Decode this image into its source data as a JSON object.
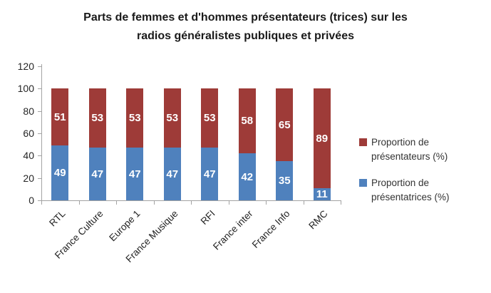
{
  "title_lines": [
    "Parts de femmes et d'hommes présentateurs (trices) sur les",
    "radios généralistes publiques et privées"
  ],
  "chart_data": {
    "type": "bar",
    "stacked": true,
    "title": "Parts de femmes et d'hommes présentateurs (trices) sur les radios généralistes publiques et privées",
    "categories": [
      "RTL",
      "France Culture",
      "Europe 1",
      "France Musique",
      "RFI",
      "France inter",
      "France Info",
      "RMC"
    ],
    "series": [
      {
        "name": "Proportion de présentatrices (%)",
        "color": "#4F81BD",
        "values": [
          49,
          47,
          47,
          47,
          47,
          42,
          35,
          11
        ]
      },
      {
        "name": "Proportion de présentateurs (%)",
        "color": "#9E3B38",
        "values": [
          51,
          53,
          53,
          53,
          53,
          58,
          65,
          89
        ]
      }
    ],
    "xlabel": "",
    "ylabel": "",
    "ylim": [
      0,
      120
    ],
    "yticks": [
      0,
      20,
      40,
      60,
      80,
      100,
      120
    ],
    "grid": false,
    "data_labels": true,
    "legend_position": "right"
  },
  "legend": {
    "items": [
      {
        "label": "Proportion de présentateurs (%)",
        "color": "#9E3B38"
      },
      {
        "label": "Proportion de présentatrices (%)",
        "color": "#4F81BD"
      }
    ]
  },
  "colors": {
    "bar_blue": "#4F81BD",
    "bar_red": "#9E3B38",
    "axis": "#a3a3a3",
    "text": "#262626"
  }
}
